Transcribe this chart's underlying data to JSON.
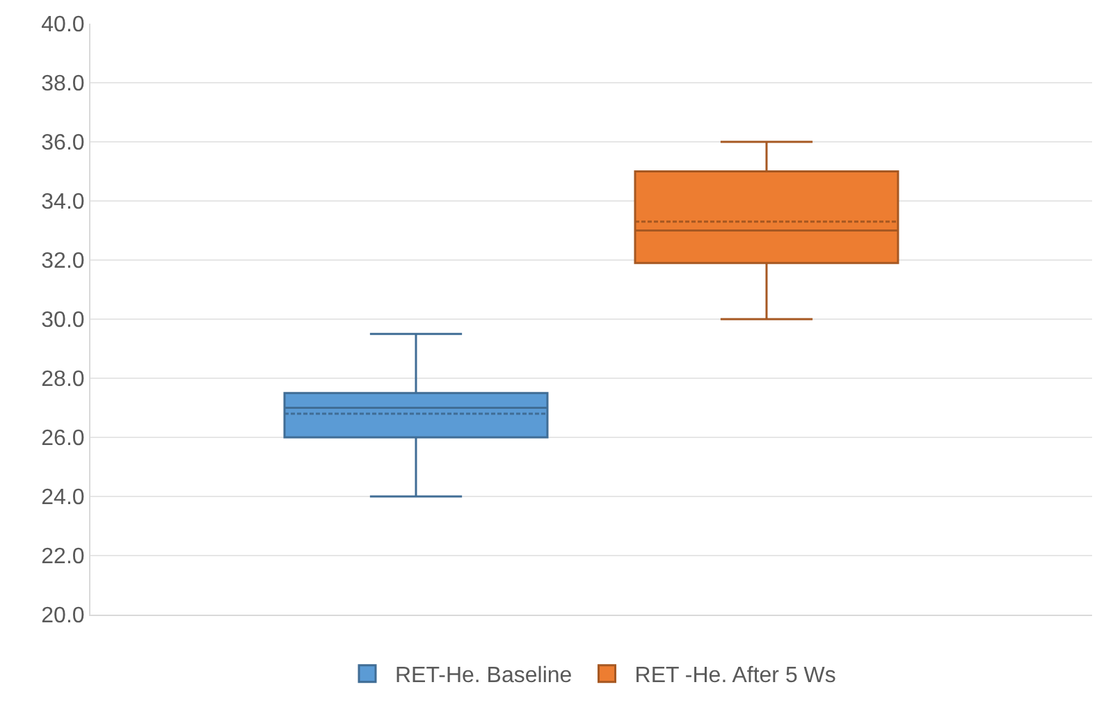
{
  "chart_data": {
    "type": "box",
    "categories": [
      null
    ],
    "series": [
      {
        "name": "RET-He. Baseline",
        "color": "#5b9bd5",
        "boxes": [
          {
            "low": 24,
            "q1": 26,
            "median": 27,
            "q3": 27.5,
            "high": 29.5,
            "mean": 26.8
          }
        ]
      },
      {
        "name": "RET -He. After 5 Ws",
        "color": "#ed7d31",
        "boxes": [
          {
            "low": 30,
            "q1": 31.9,
            "median": 33,
            "q3": 35,
            "high": 36,
            "mean": 33.3
          }
        ]
      }
    ],
    "ylim": [
      20,
      40
    ],
    "yticks": [
      {
        "value": 20,
        "label": "20.0"
      },
      {
        "value": 22,
        "label": "22.0"
      },
      {
        "value": 24,
        "label": "24.0"
      },
      {
        "value": 26,
        "label": "26.0"
      },
      {
        "value": 28,
        "label": "28.0"
      },
      {
        "value": 30,
        "label": "30.0"
      },
      {
        "value": 32,
        "label": "32.0"
      },
      {
        "value": 34,
        "label": "34.0"
      },
      {
        "value": 36,
        "label": "36.0"
      },
      {
        "value": 38,
        "label": "38.0"
      },
      {
        "value": 40,
        "label": "40.0"
      }
    ],
    "grid": "y",
    "legend": "bottom"
  }
}
